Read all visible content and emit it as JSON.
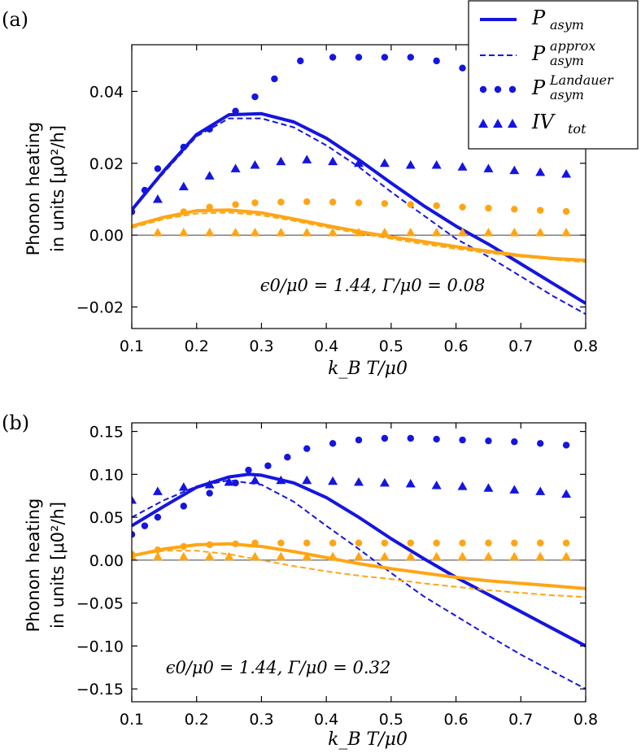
{
  "colors": {
    "blue": "#1515e0",
    "orange": "#ffa514"
  },
  "legend": {
    "items": [
      {
        "style": "solid",
        "main": "P",
        "sub": "asym",
        "sup": ""
      },
      {
        "style": "dashed",
        "main": "P",
        "sub": "asym",
        "sup": "approx"
      },
      {
        "style": "dots",
        "main": "P",
        "sub": "asym",
        "sup": "Landauer"
      },
      {
        "style": "triangles",
        "main": "IV",
        "sub": "tot",
        "sup": ""
      }
    ]
  },
  "chart_data": [
    {
      "type": "line",
      "panel": "(a)",
      "annotation": "ϵ0/μ0 = 1.44, Γ/μ0 = 0.08",
      "xlabel": "k_B T/μ0",
      "ylabel": [
        "Phonon heating",
        "in units [μ0²/h]"
      ],
      "xlim": [
        0.1,
        0.8
      ],
      "ylim": [
        -0.026,
        0.053
      ],
      "xticks": [
        0.1,
        0.2,
        0.3,
        0.4,
        0.5,
        0.6,
        0.7,
        0.8
      ],
      "xticklabels": [
        "0.1",
        "0.2",
        "0.3",
        "0.4",
        "0.5",
        "0.6",
        "0.7",
        "0.8"
      ],
      "yticks": [
        -0.02,
        0.0,
        0.02,
        0.04
      ],
      "yticklabels": [
        "−0.02",
        "0.00",
        "0.02",
        "0.04"
      ],
      "series": [
        {
          "name": "P_asym (blue)",
          "color": "blue",
          "style": "solid",
          "x": [
            0.1,
            0.15,
            0.2,
            0.25,
            0.3,
            0.35,
            0.4,
            0.45,
            0.5,
            0.55,
            0.6,
            0.65,
            0.7,
            0.75,
            0.8
          ],
          "y": [
            0.007,
            0.018,
            0.028,
            0.0335,
            0.0338,
            0.0315,
            0.027,
            0.021,
            0.0145,
            0.0082,
            0.0025,
            -0.0025,
            -0.008,
            -0.0135,
            -0.019
          ]
        },
        {
          "name": "P_asym^approx (blue)",
          "color": "blue",
          "style": "dashed",
          "x": [
            0.1,
            0.15,
            0.2,
            0.25,
            0.3,
            0.35,
            0.4,
            0.45,
            0.5,
            0.55,
            0.6,
            0.65,
            0.7,
            0.75,
            0.8
          ],
          "y": [
            0.007,
            0.0175,
            0.0275,
            0.0325,
            0.0325,
            0.03,
            0.025,
            0.019,
            0.012,
            0.0055,
            -0.001,
            -0.006,
            -0.0115,
            -0.017,
            -0.022
          ]
        },
        {
          "name": "P_asym^Landauer (blue)",
          "color": "blue",
          "style": "dots",
          "x": [
            0.1,
            0.12,
            0.14,
            0.18,
            0.22,
            0.26,
            0.29,
            0.32,
            0.36,
            0.41,
            0.45,
            0.49,
            0.53,
            0.57,
            0.61
          ],
          "y": [
            0.0065,
            0.0125,
            0.0185,
            0.0245,
            0.0295,
            0.0345,
            0.0385,
            0.0435,
            0.0485,
            0.0495,
            0.0495,
            0.0495,
            0.0495,
            0.0485,
            0.0465
          ]
        },
        {
          "name": "IV_tot (blue)",
          "color": "blue",
          "style": "triangles",
          "x": [
            0.14,
            0.18,
            0.22,
            0.26,
            0.29,
            0.33,
            0.37,
            0.41,
            0.45,
            0.49,
            0.53,
            0.57,
            0.61,
            0.65,
            0.69,
            0.73,
            0.77
          ],
          "y": [
            0.01,
            0.0135,
            0.0165,
            0.0185,
            0.0195,
            0.0205,
            0.021,
            0.0205,
            0.02,
            0.02,
            0.0195,
            0.0195,
            0.019,
            0.0185,
            0.018,
            0.0175,
            0.017
          ]
        },
        {
          "name": "P_asym (orange)",
          "color": "orange",
          "style": "solid",
          "x": [
            0.1,
            0.15,
            0.2,
            0.25,
            0.3,
            0.35,
            0.4,
            0.45,
            0.5,
            0.55,
            0.6,
            0.65,
            0.7,
            0.75,
            0.8
          ],
          "y": [
            0.0025,
            0.005,
            0.0068,
            0.007,
            0.0062,
            0.0045,
            0.0027,
            0.001,
            -0.0005,
            -0.0018,
            -0.0032,
            -0.0045,
            -0.0057,
            -0.0065,
            -0.007
          ]
        },
        {
          "name": "P_asym^approx (orange)",
          "color": "orange",
          "style": "dashed",
          "x": [
            0.1,
            0.15,
            0.2,
            0.25,
            0.3,
            0.35,
            0.4,
            0.45,
            0.5,
            0.55,
            0.6,
            0.65,
            0.7,
            0.75,
            0.8
          ],
          "y": [
            0.002,
            0.0045,
            0.006,
            0.0063,
            0.0055,
            0.004,
            0.0022,
            0.0005,
            -0.001,
            -0.0025,
            -0.0038,
            -0.005,
            -0.006,
            -0.0068,
            -0.0075
          ]
        },
        {
          "name": "P_asym^Landauer (orange)",
          "color": "orange",
          "style": "dots",
          "x": [
            0.18,
            0.22,
            0.26,
            0.29,
            0.33,
            0.37,
            0.41,
            0.45,
            0.49,
            0.53,
            0.57,
            0.61,
            0.65,
            0.69,
            0.73,
            0.77
          ],
          "y": [
            0.0065,
            0.0078,
            0.0085,
            0.009,
            0.0092,
            0.0093,
            0.0092,
            0.009,
            0.0088,
            0.0085,
            0.0082,
            0.0078,
            0.0075,
            0.0072,
            0.0069,
            0.0066
          ]
        },
        {
          "name": "IV_tot (orange)",
          "color": "orange",
          "style": "triangles",
          "x": [
            0.14,
            0.18,
            0.22,
            0.26,
            0.29,
            0.33,
            0.37,
            0.41,
            0.45,
            0.49,
            0.53,
            0.57,
            0.61,
            0.65,
            0.69,
            0.73,
            0.77
          ],
          "y": [
            0.0007,
            0.0007,
            0.0007,
            0.0007,
            0.0007,
            0.0007,
            0.0007,
            0.0007,
            0.0007,
            0.0007,
            0.0007,
            0.0007,
            0.0007,
            0.0007,
            0.0007,
            0.0007,
            0.0007
          ]
        }
      ]
    },
    {
      "type": "line",
      "panel": "(b)",
      "annotation": "ϵ0/μ0 = 1.44, Γ/μ0 = 0.32",
      "xlabel": "k_B T/μ0",
      "ylabel": [
        "Phonon heating",
        "in units [μ0²/h]"
      ],
      "xlim": [
        0.1,
        0.8
      ],
      "ylim": [
        -0.165,
        0.16
      ],
      "xticks": [
        0.1,
        0.2,
        0.3,
        0.4,
        0.5,
        0.6,
        0.7,
        0.8
      ],
      "xticklabels": [
        "0.1",
        "0.2",
        "0.3",
        "0.4",
        "0.5",
        "0.6",
        "0.7",
        "0.8"
      ],
      "yticks": [
        -0.15,
        -0.1,
        -0.05,
        0.0,
        0.05,
        0.1,
        0.15
      ],
      "yticklabels": [
        "−0.15",
        "−0.10",
        "−0.05",
        "0.00",
        "0.05",
        "0.10",
        "0.15"
      ],
      "series": [
        {
          "name": "P_asym (blue)",
          "color": "blue",
          "style": "solid",
          "x": [
            0.1,
            0.15,
            0.2,
            0.25,
            0.28,
            0.3,
            0.35,
            0.4,
            0.45,
            0.5,
            0.55,
            0.6,
            0.65,
            0.7,
            0.75,
            0.8
          ],
          "y": [
            0.04,
            0.063,
            0.085,
            0.097,
            0.1,
            0.099,
            0.09,
            0.073,
            0.05,
            0.025,
            0.002,
            -0.02,
            -0.04,
            -0.06,
            -0.08,
            -0.1
          ]
        },
        {
          "name": "P_asym^approx (blue)",
          "color": "blue",
          "style": "dashed",
          "x": [
            0.1,
            0.15,
            0.2,
            0.25,
            0.3,
            0.35,
            0.4,
            0.45,
            0.5,
            0.55,
            0.6,
            0.65,
            0.7,
            0.75,
            0.8
          ],
          "y": [
            0.05,
            0.07,
            0.086,
            0.093,
            0.088,
            0.068,
            0.04,
            0.013,
            -0.015,
            -0.042,
            -0.065,
            -0.088,
            -0.11,
            -0.13,
            -0.15
          ]
        },
        {
          "name": "P_asym^Landauer (blue)",
          "color": "blue",
          "style": "dots",
          "x": [
            0.1,
            0.12,
            0.14,
            0.18,
            0.22,
            0.26,
            0.28,
            0.31,
            0.34,
            0.37,
            0.41,
            0.45,
            0.49,
            0.53,
            0.57,
            0.61,
            0.65,
            0.69,
            0.73,
            0.77
          ],
          "y": [
            0.03,
            0.04,
            0.05,
            0.063,
            0.078,
            0.09,
            0.105,
            0.11,
            0.12,
            0.13,
            0.136,
            0.14,
            0.142,
            0.142,
            0.141,
            0.14,
            0.139,
            0.138,
            0.136,
            0.134
          ]
        },
        {
          "name": "IV_tot (blue)",
          "color": "blue",
          "style": "triangles",
          "x": [
            0.1,
            0.14,
            0.18,
            0.22,
            0.25,
            0.29,
            0.33,
            0.37,
            0.41,
            0.45,
            0.49,
            0.53,
            0.57,
            0.61,
            0.65,
            0.69,
            0.73,
            0.77
          ],
          "y": [
            0.07,
            0.08,
            0.085,
            0.088,
            0.091,
            0.093,
            0.093,
            0.093,
            0.092,
            0.091,
            0.09,
            0.089,
            0.087,
            0.086,
            0.084,
            0.082,
            0.08,
            0.077
          ]
        },
        {
          "name": "P_asym (orange)",
          "color": "orange",
          "style": "solid",
          "x": [
            0.1,
            0.15,
            0.2,
            0.25,
            0.3,
            0.35,
            0.4,
            0.45,
            0.5,
            0.55,
            0.6,
            0.65,
            0.7,
            0.75,
            0.8
          ],
          "y": [
            0.005,
            0.013,
            0.018,
            0.019,
            0.016,
            0.01,
            0.003,
            -0.004,
            -0.01,
            -0.015,
            -0.02,
            -0.024,
            -0.027,
            -0.03,
            -0.033
          ]
        },
        {
          "name": "P_asym^approx (orange)",
          "color": "orange",
          "style": "dashed",
          "x": [
            0.1,
            0.15,
            0.2,
            0.25,
            0.3,
            0.35,
            0.4,
            0.45,
            0.5,
            0.55,
            0.6,
            0.65,
            0.7,
            0.75,
            0.8
          ],
          "y": [
            0.006,
            0.011,
            0.011,
            0.007,
            0.0,
            -0.007,
            -0.013,
            -0.018,
            -0.022,
            -0.027,
            -0.031,
            -0.035,
            -0.038,
            -0.041,
            -0.043
          ]
        },
        {
          "name": "P_asym^Landauer (orange)",
          "color": "orange",
          "style": "dots",
          "x": [
            0.1,
            0.14,
            0.18,
            0.22,
            0.26,
            0.29,
            0.33,
            0.37,
            0.41,
            0.45,
            0.49,
            0.53,
            0.57,
            0.61,
            0.65,
            0.69,
            0.73,
            0.77
          ],
          "y": [
            0.007,
            0.012,
            0.016,
            0.018,
            0.019,
            0.02,
            0.02,
            0.02,
            0.02,
            0.02,
            0.02,
            0.02,
            0.02,
            0.02,
            0.02,
            0.02,
            0.02,
            0.02
          ]
        },
        {
          "name": "IV_tot (orange)",
          "color": "orange",
          "style": "triangles",
          "x": [
            0.1,
            0.14,
            0.18,
            0.22,
            0.25,
            0.29,
            0.33,
            0.37,
            0.41,
            0.45,
            0.49,
            0.53,
            0.57,
            0.61,
            0.65,
            0.69,
            0.73,
            0.77
          ],
          "y": [
            0.004,
            0.004,
            0.004,
            0.004,
            0.004,
            0.004,
            0.004,
            0.004,
            0.004,
            0.004,
            0.004,
            0.004,
            0.004,
            0.004,
            0.004,
            0.004,
            0.004,
            0.004
          ]
        }
      ]
    }
  ]
}
